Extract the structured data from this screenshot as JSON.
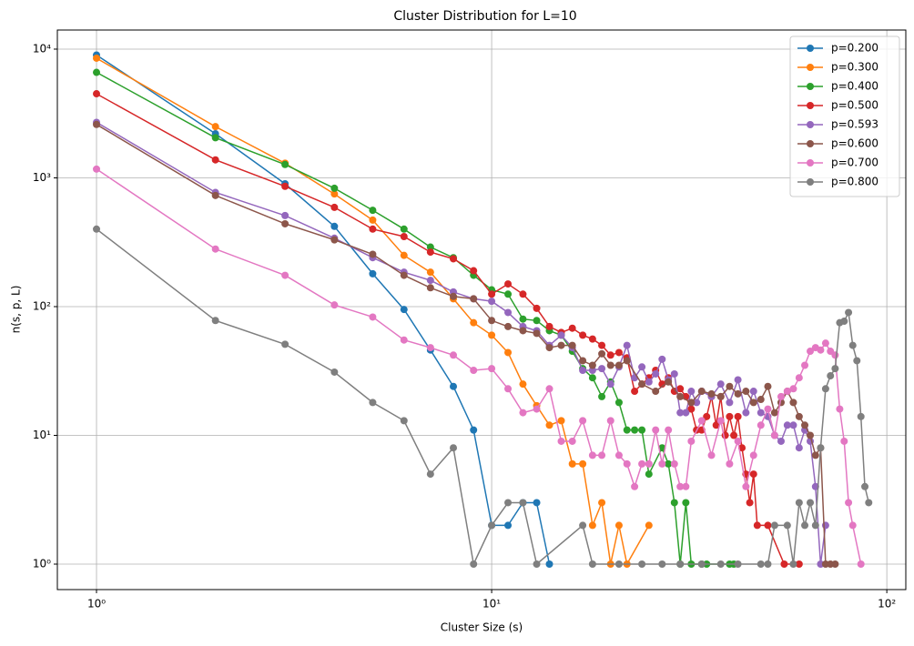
{
  "chart_data": {
    "type": "line",
    "title": "Cluster Distribution for L=10",
    "x_label": "Cluster Size (s)",
    "y_label": "n(s, p, L)",
    "log_x": true,
    "log_y": true,
    "grid": true,
    "legend": "upper right",
    "xlim": [
      0.796,
      111.7
    ],
    "ylim": [
      0.634,
      14070
    ],
    "xticks": [
      {
        "value": 1,
        "label": "10⁰"
      },
      {
        "value": 10,
        "label": "10¹"
      },
      {
        "value": 100,
        "label": "10²"
      }
    ],
    "yticks": [
      {
        "value": 1,
        "label": "10⁰"
      },
      {
        "value": 10,
        "label": "10¹"
      },
      {
        "value": 100,
        "label": "10²"
      },
      {
        "value": 1000,
        "label": "10³"
      },
      {
        "value": 10000,
        "label": "10⁴"
      }
    ],
    "series": [
      {
        "name": "p=0.200",
        "color": "#1f77b4",
        "x": [
          1,
          2,
          3,
          4,
          5,
          6,
          7,
          8,
          9,
          10,
          11,
          12,
          13,
          14
        ],
        "values": [
          9000,
          2200,
          900,
          420,
          180,
          95,
          46,
          24,
          11,
          2,
          2,
          3,
          3,
          1
        ]
      },
      {
        "name": "p=0.300",
        "color": "#ff7f0e",
        "x": [
          1,
          2,
          3,
          4,
          5,
          6,
          7,
          8,
          9,
          10,
          11,
          12,
          13,
          14,
          15,
          16,
          17,
          18,
          19,
          20,
          21,
          22,
          25
        ],
        "values": [
          8500,
          2500,
          1300,
          750,
          470,
          250,
          185,
          115,
          75,
          60,
          44,
          25,
          17,
          12,
          13,
          6,
          6,
          2,
          3,
          1,
          2,
          1,
          2
        ]
      },
      {
        "name": "p=0.400",
        "color": "#2ca02c",
        "x": [
          1,
          2,
          3,
          4,
          5,
          6,
          7,
          8,
          9,
          10,
          11,
          12,
          13,
          14,
          15,
          16,
          17,
          18,
          19,
          20,
          21,
          22,
          23,
          24,
          25,
          27,
          28,
          29,
          30,
          31,
          32,
          34,
          35,
          40,
          41
        ],
        "values": [
          6600,
          2050,
          1270,
          830,
          560,
          400,
          290,
          240,
          175,
          135,
          125,
          80,
          78,
          65,
          60,
          45,
          33,
          28,
          20,
          26,
          18,
          11,
          11,
          11,
          5,
          8,
          6,
          3,
          1,
          3,
          1,
          1,
          1,
          1,
          1
        ]
      },
      {
        "name": "p=0.500",
        "color": "#d62728",
        "x": [
          1,
          2,
          3,
          4,
          5,
          6,
          7,
          8,
          9,
          10,
          11,
          12,
          13,
          14,
          15,
          16,
          17,
          18,
          19,
          20,
          21,
          22,
          23,
          24,
          25,
          26,
          27,
          28,
          29,
          30,
          31,
          32,
          33,
          34,
          35,
          36,
          37,
          38,
          39,
          40,
          41,
          42,
          43,
          44,
          45,
          46,
          47,
          50,
          55,
          60
        ],
        "values": [
          4500,
          1380,
          860,
          590,
          400,
          350,
          265,
          235,
          190,
          125,
          150,
          125,
          97,
          70,
          63,
          68,
          60,
          56,
          50,
          42,
          44,
          40,
          22,
          25,
          28,
          32,
          25,
          28,
          22,
          23,
          20,
          16,
          11,
          11,
          14,
          20,
          12,
          20,
          10,
          14,
          10,
          14,
          8,
          5,
          3,
          5,
          2,
          2,
          1,
          1
        ]
      },
      {
        "name": "p=0.593",
        "color": "#9467bd",
        "x": [
          1,
          2,
          3,
          4,
          5,
          6,
          7,
          8,
          9,
          10,
          11,
          12,
          13,
          14,
          15,
          16,
          17,
          18,
          19,
          20,
          21,
          22,
          23,
          24,
          25,
          26,
          27,
          28,
          29,
          30,
          31,
          32,
          33,
          34,
          36,
          38,
          40,
          42,
          44,
          46,
          48,
          50,
          52,
          54,
          56,
          58,
          60,
          62,
          64,
          66,
          68,
          70
        ],
        "values": [
          2700,
          770,
          510,
          340,
          240,
          185,
          160,
          130,
          115,
          110,
          90,
          70,
          65,
          50,
          60,
          48,
          32,
          32,
          33,
          25,
          34,
          50,
          28,
          34,
          26,
          30,
          39,
          27,
          30,
          15,
          15,
          22,
          18,
          22,
          20,
          25,
          18,
          27,
          15,
          22,
          15,
          14,
          10,
          9,
          12,
          12,
          8,
          11,
          9,
          4,
          1,
          2
        ]
      },
      {
        "name": "p=0.600",
        "color": "#8c564b",
        "x": [
          1,
          2,
          3,
          4,
          5,
          6,
          7,
          8,
          9,
          10,
          11,
          12,
          13,
          14,
          15,
          16,
          17,
          18,
          19,
          20,
          21,
          22,
          24,
          26,
          28,
          30,
          32,
          34,
          36,
          38,
          40,
          42,
          44,
          46,
          48,
          50,
          52,
          54,
          56,
          58,
          60,
          62,
          64,
          66,
          68,
          70,
          72,
          74
        ],
        "values": [
          2600,
          730,
          440,
          330,
          255,
          175,
          140,
          120,
          115,
          78,
          70,
          65,
          62,
          48,
          50,
          50,
          38,
          35,
          43,
          35,
          35,
          38,
          25,
          22,
          26,
          20,
          18,
          22,
          21,
          20,
          24,
          21,
          22,
          18,
          19,
          24,
          15,
          18,
          22,
          18,
          14,
          12,
          10,
          7,
          8,
          1,
          1,
          1
        ]
      },
      {
        "name": "p=0.700",
        "color": "#e377c2",
        "x": [
          1,
          2,
          3,
          4,
          5,
          6,
          7,
          8,
          9,
          10,
          11,
          12,
          13,
          14,
          15,
          16,
          17,
          18,
          19,
          20,
          21,
          22,
          23,
          24,
          25,
          26,
          27,
          28,
          29,
          30,
          31,
          32,
          34,
          36,
          38,
          40,
          42,
          44,
          46,
          48,
          50,
          52,
          54,
          56,
          58,
          60,
          62,
          64,
          66,
          68,
          70,
          72,
          74,
          76,
          78,
          80,
          82,
          86
        ],
        "values": [
          1170,
          280,
          175,
          103,
          83,
          55,
          48,
          42,
          32,
          33,
          23,
          15,
          16,
          23,
          9,
          9,
          13,
          7,
          7,
          13,
          7,
          6,
          4,
          6,
          6,
          11,
          6,
          11,
          6,
          4,
          4,
          9,
          13,
          7,
          13,
          6,
          9,
          4,
          7,
          12,
          16,
          10,
          20,
          22,
          23,
          28,
          35,
          45,
          48,
          46,
          52,
          45,
          42,
          16,
          9,
          3,
          2,
          1
        ]
      },
      {
        "name": "p=0.800",
        "color": "#7f7f7f",
        "x": [
          1,
          2,
          3,
          4,
          5,
          6,
          7,
          8,
          9,
          10,
          11,
          12,
          13,
          17,
          18,
          21,
          24,
          27,
          30,
          34,
          38,
          42,
          48,
          50,
          52,
          56,
          58,
          60,
          62,
          64,
          66,
          68,
          70,
          72,
          74,
          76,
          78,
          80,
          82,
          84,
          86,
          88,
          90
        ],
        "values": [
          400,
          78,
          51,
          31,
          18,
          13,
          5,
          8,
          1,
          2,
          3,
          3,
          1,
          2,
          1,
          1,
          1,
          1,
          1,
          1,
          1,
          1,
          1,
          1,
          2,
          2,
          1,
          3,
          2,
          3,
          2,
          8,
          23,
          29,
          33,
          75,
          77,
          90,
          50,
          38,
          14,
          4,
          3
        ]
      }
    ]
  }
}
